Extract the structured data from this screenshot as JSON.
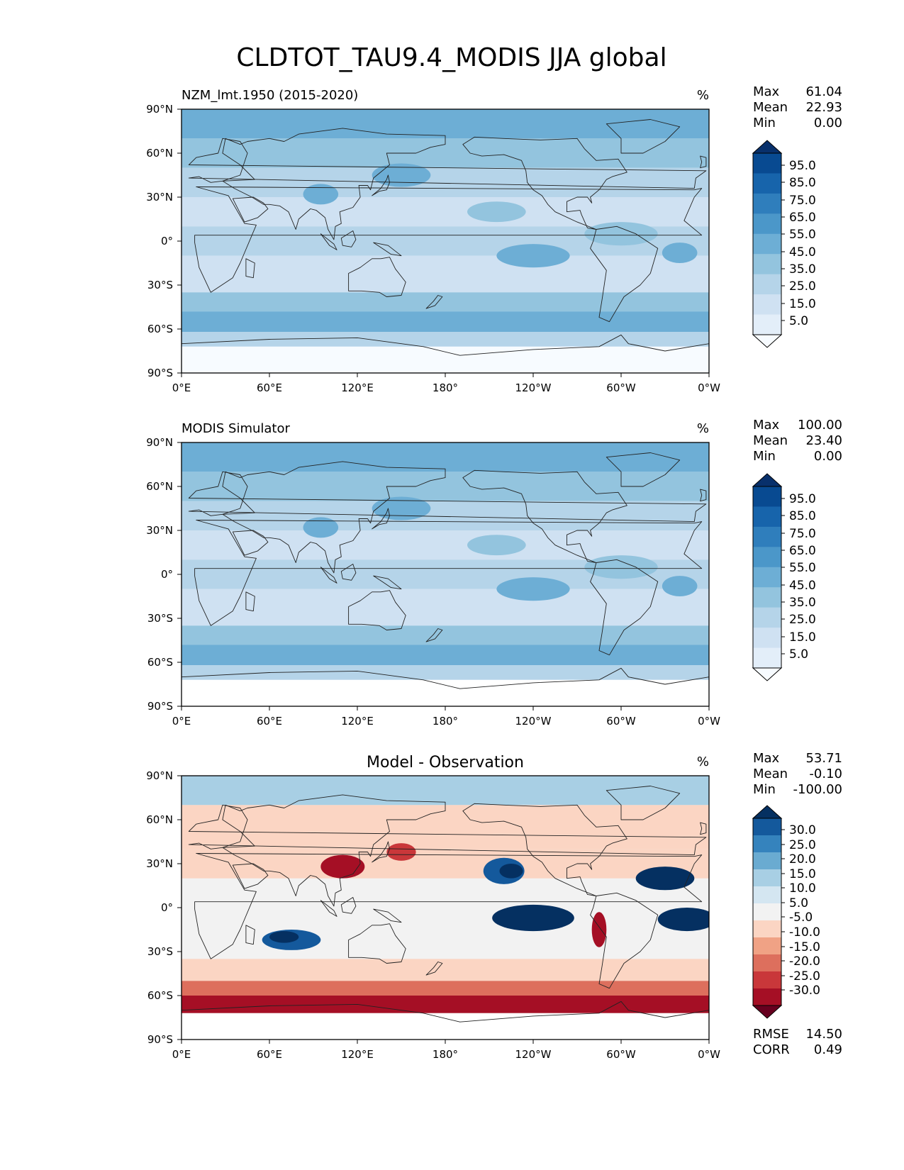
{
  "title": "CLDTOT_TAU9.4_MODIS JJA global",
  "x_ticks": [
    "0°E",
    "60°E",
    "120°E",
    "180°",
    "120°W",
    "60°W",
    "0°W"
  ],
  "y_ticks": [
    "90°N",
    "60°N",
    "30°N",
    "0°",
    "30°S",
    "60°S",
    "90°S"
  ],
  "chart_data": [
    {
      "type": "heatmap",
      "panel": "test",
      "left_title": "NZM_lmt.1950 (2015-2020)",
      "center_title": "",
      "units": "%",
      "stats": {
        "Max": "61.04",
        "Mean": "22.93",
        "Min": "0.00"
      },
      "colorbar_ticks": [
        "95.0",
        "85.0",
        "75.0",
        "65.0",
        "55.0",
        "45.0",
        "35.0",
        "25.0",
        "15.0",
        "5.0"
      ],
      "colormap": "Blues",
      "colors": [
        "#f7fbff",
        "#e3eef9",
        "#cfe1f2",
        "#b5d4e9",
        "#93c4de",
        "#6daed5",
        "#4b97c9",
        "#2f7ebc",
        "#1764ab",
        "#084a91",
        "#08306b"
      ],
      "xlim": [
        0,
        360
      ],
      "ylim": [
        -90,
        90
      ]
    },
    {
      "type": "heatmap",
      "panel": "reference",
      "left_title": "MODIS Simulator",
      "center_title": "",
      "units": "%",
      "stats": {
        "Max": "100.00",
        "Mean": "23.40",
        "Min": "0.00"
      },
      "colorbar_ticks": [
        "95.0",
        "85.0",
        "75.0",
        "65.0",
        "55.0",
        "45.0",
        "35.0",
        "25.0",
        "15.0",
        "5.0"
      ],
      "colormap": "Blues",
      "colors": [
        "#f7fbff",
        "#e3eef9",
        "#cfe1f2",
        "#b5d4e9",
        "#93c4de",
        "#6daed5",
        "#4b97c9",
        "#2f7ebc",
        "#1764ab",
        "#084a91",
        "#08306b"
      ],
      "xlim": [
        0,
        360
      ],
      "ylim": [
        -90,
        90
      ]
    },
    {
      "type": "heatmap",
      "panel": "difference",
      "left_title": "",
      "center_title": "Model - Observation",
      "units": "%",
      "stats": {
        "Max": "53.71",
        "Mean": "-0.10",
        "Min": "-100.00"
      },
      "colorbar_ticks": [
        "30.0",
        "25.0",
        "20.0",
        "15.0",
        "10.0",
        "5.0",
        "-5.0",
        "-10.0",
        "-15.0",
        "-20.0",
        "-25.0",
        "-30.0"
      ],
      "colormap": "RdBu",
      "colors": [
        "#67001f",
        "#a50f25",
        "#c9373a",
        "#dd6f5d",
        "#f0a285",
        "#fbd5c3",
        "#f2f2f2",
        "#d4e6f1",
        "#a8cfe4",
        "#6aabd1",
        "#3583bd",
        "#14599c",
        "#053061"
      ],
      "rmse_corr": {
        "RMSE": "14.50",
        "CORR": "0.49"
      },
      "xlim": [
        0,
        360
      ],
      "ylim": [
        -90,
        90
      ]
    }
  ]
}
